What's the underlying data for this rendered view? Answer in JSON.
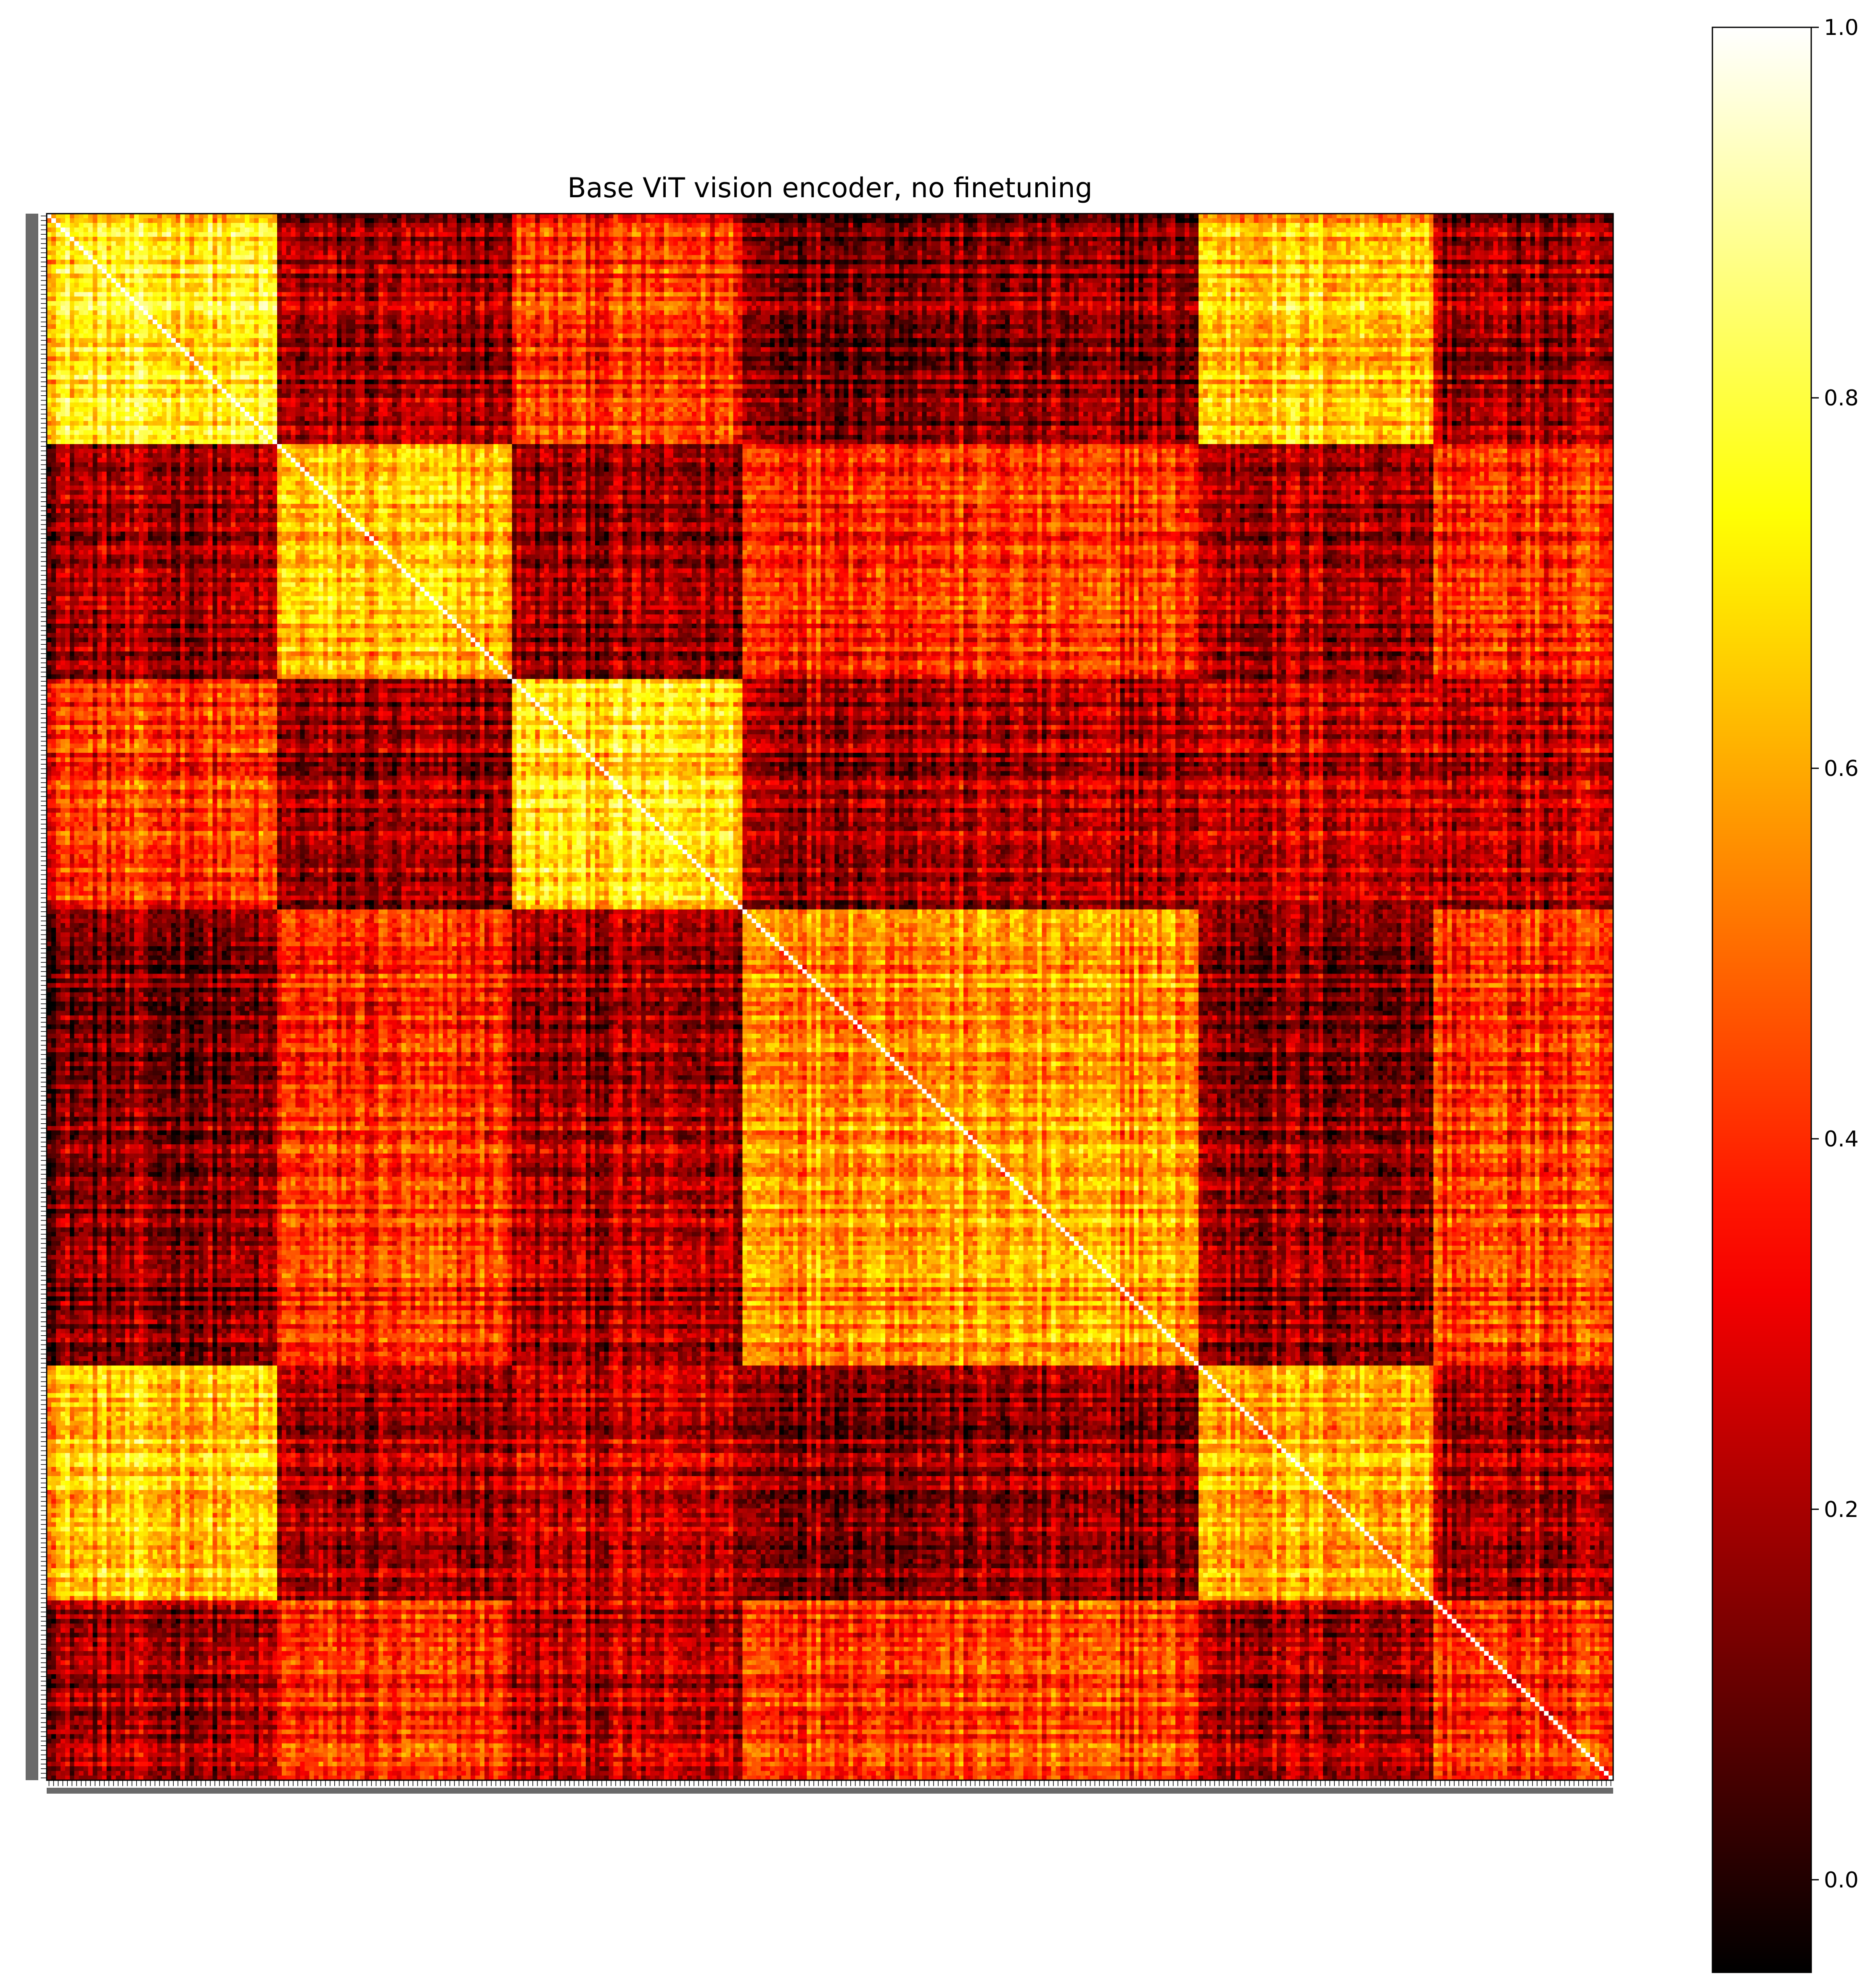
{
  "chart_data": {
    "type": "heatmap",
    "title": "Base ViT vision encoder, no finetuning",
    "xlabel": "",
    "ylabel": "",
    "matrix_size": 340,
    "diagonal_value": 1.0,
    "blocks": [
      {
        "start": 0,
        "end": 50
      },
      {
        "start": 50,
        "end": 101
      },
      {
        "start": 101,
        "end": 151
      },
      {
        "start": 151,
        "end": 250
      },
      {
        "start": 250,
        "end": 301
      },
      {
        "start": 301,
        "end": 340
      }
    ],
    "block_similarity": [
      [
        0.72,
        0.18,
        0.4,
        0.14,
        0.65,
        0.18
      ],
      [
        0.18,
        0.62,
        0.16,
        0.4,
        0.2,
        0.38
      ],
      [
        0.4,
        0.16,
        0.68,
        0.2,
        0.25,
        0.22
      ],
      [
        0.14,
        0.4,
        0.2,
        0.58,
        0.17,
        0.42
      ],
      [
        0.65,
        0.2,
        0.25,
        0.17,
        0.62,
        0.2
      ],
      [
        0.18,
        0.38,
        0.22,
        0.42,
        0.2,
        0.38
      ]
    ],
    "colorbar": {
      "colormap": "hot",
      "vmin": -0.05,
      "vmax": 1.0,
      "ticks": [
        {
          "value": 0.0,
          "label": "0.0"
        },
        {
          "value": 0.2,
          "label": "0.2"
        },
        {
          "value": 0.4,
          "label": "0.4"
        },
        {
          "value": 0.6,
          "label": "0.6"
        },
        {
          "value": 0.8,
          "label": "0.8"
        },
        {
          "value": 1.0,
          "label": "1.0"
        }
      ]
    }
  }
}
